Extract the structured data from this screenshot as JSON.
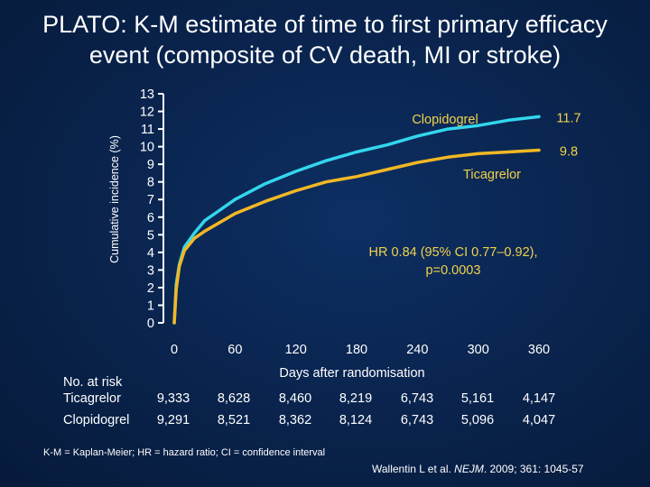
{
  "title": {
    "line1": "PLATO:  K-M estimate of time to first primary efficacy",
    "line2": "event (composite of CV death, MI or stroke)"
  },
  "colors": {
    "background": "#0a2550",
    "clopidogrel": "#33d6ee",
    "ticagrelor": "#f2b824",
    "axis": "#ffffff",
    "hr_text": "#f2d24a"
  },
  "chart_data": {
    "type": "line",
    "xlabel": "Days after randomisation",
    "ylabel": "Cumulative incidence (%)",
    "xlim": [
      0,
      360
    ],
    "ylim": [
      0,
      13
    ],
    "x_ticks": [
      0,
      60,
      120,
      180,
      240,
      300,
      360
    ],
    "y_ticks": [
      0,
      1,
      2,
      3,
      4,
      5,
      6,
      7,
      8,
      9,
      10,
      11,
      12,
      13
    ],
    "series": [
      {
        "name": "Clopidogrel",
        "color": "#33d6ee",
        "end_label": "11.7",
        "x": [
          0,
          2,
          5,
          10,
          20,
          30,
          45,
          60,
          90,
          120,
          150,
          180,
          210,
          240,
          270,
          300,
          330,
          360
        ],
        "y": [
          0,
          2.2,
          3.3,
          4.3,
          5.1,
          5.8,
          6.4,
          7.0,
          7.9,
          8.6,
          9.2,
          9.7,
          10.1,
          10.6,
          11.0,
          11.2,
          11.5,
          11.7
        ]
      },
      {
        "name": "Ticagrelor",
        "color": "#f2b824",
        "end_label": "9.8",
        "x": [
          0,
          2,
          5,
          10,
          20,
          30,
          45,
          60,
          90,
          120,
          150,
          180,
          210,
          240,
          270,
          300,
          330,
          360
        ],
        "y": [
          0,
          1.9,
          3.2,
          4.1,
          4.8,
          5.2,
          5.7,
          6.2,
          6.9,
          7.5,
          8.0,
          8.3,
          8.7,
          9.1,
          9.4,
          9.6,
          9.7,
          9.8
        ]
      }
    ],
    "annotation": {
      "line1": "HR 0.84 (95% CI 0.77–0.92),",
      "line2": "p=0.0003"
    }
  },
  "risk_table": {
    "header": "No. at risk",
    "rows": [
      {
        "label": "Ticagrelor",
        "values": [
          "9,333",
          "8,628",
          "8,460",
          "8,219",
          "6,743",
          "5,161",
          "4,147"
        ]
      },
      {
        "label": "Clopidogrel",
        "values": [
          "9,291",
          "8,521",
          "8,362",
          "8,124",
          "6,743",
          "5,096",
          "4,047"
        ]
      }
    ]
  },
  "footnote": "K-M = Kaplan-Meier; HR = hazard ratio; CI = confidence interval",
  "citation": {
    "authors": "Wallentin L et al. ",
    "journal": "NEJM",
    "details": ". 2009; 361: 1045-57"
  }
}
